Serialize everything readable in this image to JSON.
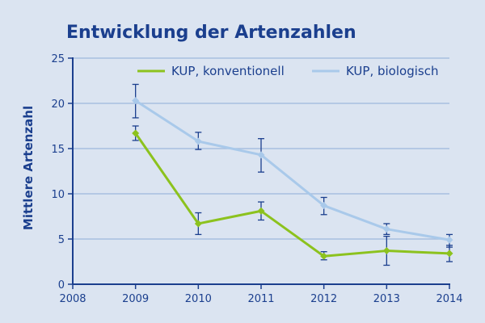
{
  "chart_data": {
    "type": "line",
    "title": "Entwicklung der Artenzahlen",
    "xlabel": "",
    "ylabel": "Mittlere Artenzahl",
    "xlim": [
      2008,
      2014
    ],
    "ylim": [
      0,
      25
    ],
    "x_ticks": [
      "2008",
      "2009",
      "2010",
      "2011",
      "2012",
      "2013",
      "2014"
    ],
    "y_ticks": [
      "0",
      "5",
      "10",
      "15",
      "20",
      "25"
    ],
    "grid": true,
    "legend_position": "top-right",
    "series": [
      {
        "name": "KUP, konventionell",
        "color": "#8cc21e",
        "x": [
          2009,
          2010,
          2011,
          2012,
          2013,
          2014
        ],
        "y": [
          16.7,
          6.7,
          8.1,
          3.1,
          3.7,
          3.4
        ],
        "err_low": [
          15.9,
          5.5,
          7.1,
          2.7,
          2.1,
          2.5
        ],
        "err_high": [
          17.5,
          7.9,
          9.1,
          3.6,
          5.3,
          4.3
        ]
      },
      {
        "name": "KUP, biologisch",
        "color": "#a9c9ea",
        "x": [
          2009,
          2010,
          2011,
          2012,
          2013,
          2014
        ],
        "y": [
          20.3,
          15.8,
          14.3,
          8.7,
          6.1,
          4.9
        ],
        "err_low": [
          18.4,
          14.9,
          12.4,
          7.7,
          5.5,
          4.1
        ],
        "err_high": [
          22.1,
          16.8,
          16.1,
          9.6,
          6.7,
          5.5
        ]
      }
    ]
  }
}
